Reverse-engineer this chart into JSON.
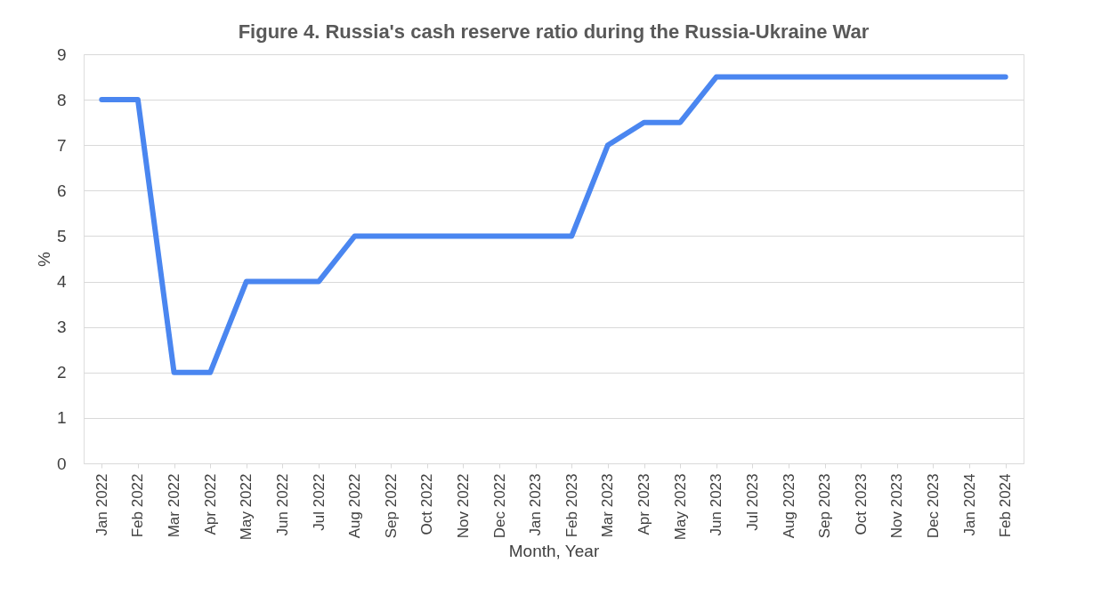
{
  "chart_data": {
    "type": "line",
    "title": "Figure 4. Russia's cash reserve ratio during the Russia-Ukraine War",
    "xlabel": "Month, Year",
    "ylabel": "%",
    "categories": [
      "Jan 2022",
      "Feb 2022",
      "Mar 2022",
      "Apr 2022",
      "May 2022",
      "Jun 2022",
      "Jul 2022",
      "Aug 2022",
      "Sep 2022",
      "Oct 2022",
      "Nov 2022",
      "Dec 2022",
      "Jan 2023",
      "Feb 2023",
      "Mar 2023",
      "Apr 2023",
      "May 2023",
      "Jun 2023",
      "Jul 2023",
      "Aug 2023",
      "Sep 2023",
      "Oct 2023",
      "Nov 2023",
      "Dec 2023",
      "Jan 2024",
      "Feb 2024"
    ],
    "series": [
      {
        "color": "#4a86f0",
        "values": [
          8,
          8,
          2,
          2,
          4,
          4,
          4,
          5,
          5,
          5,
          5,
          5,
          5,
          5,
          7,
          7.5,
          7.5,
          8.5,
          8.5,
          8.5,
          8.5,
          8.5,
          8.5,
          8.5,
          8.5,
          8.5
        ]
      }
    ],
    "ylim": [
      0,
      9
    ],
    "yticks": [
      0,
      1,
      2,
      3,
      4,
      5,
      6,
      7,
      8,
      9
    ],
    "grid": "y",
    "marker": "none",
    "line_style": "solid"
  }
}
